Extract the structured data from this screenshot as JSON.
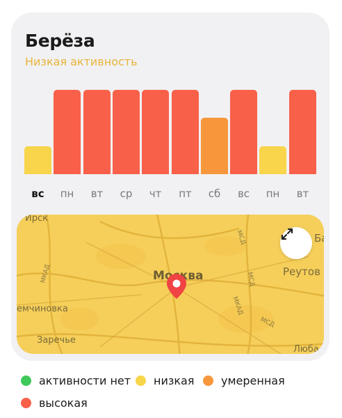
{
  "header": {
    "title": "Берёза",
    "activity_label": "Низкая активность",
    "activity_color": "#e8b43a"
  },
  "forecast": {
    "days": [
      {
        "label": "вс",
        "level": "low",
        "current": true
      },
      {
        "label": "пн",
        "level": "high",
        "current": false
      },
      {
        "label": "вт",
        "level": "high",
        "current": false
      },
      {
        "label": "ср",
        "level": "high",
        "current": false
      },
      {
        "label": "чт",
        "level": "high",
        "current": false
      },
      {
        "label": "пт",
        "level": "high",
        "current": false
      },
      {
        "label": "сб",
        "level": "moderate",
        "current": false
      },
      {
        "label": "вс",
        "level": "high",
        "current": false
      },
      {
        "label": "пн",
        "level": "low",
        "current": false
      },
      {
        "label": "вт",
        "level": "high",
        "current": false
      }
    ],
    "level_scale": {
      "none": 0,
      "low": 1,
      "moderate": 2,
      "high": 3
    },
    "level_colors": {
      "none": "#3ec95a",
      "low": "#f8d54a",
      "moderate": "#f7963b",
      "high": "#f9604a"
    }
  },
  "map": {
    "city_label": "Москва",
    "labels": {
      "top_left": "Ирск",
      "reutov": "Реутов",
      "chermenovka": "емчиновка",
      "zarechye": "Заречье",
      "lyubertsy": "Люба",
      "balashikha": "Ба"
    },
    "road_labels": {
      "mkad_left": "МКАД",
      "msd_1": "МСД",
      "msd_2": "МСД",
      "msd_3": "МСД",
      "mkad_bottom": "МКАД"
    },
    "expand_icon": "expand-arrows-icon",
    "pin_icon": "location-pin-icon",
    "pin_color": "#f04343"
  },
  "legend": [
    {
      "label": "активности нет",
      "color": "#3ec95a"
    },
    {
      "label": "низкая",
      "color": "#f8d54a"
    },
    {
      "label": "умеренная",
      "color": "#f7963b"
    },
    {
      "label": "высокая",
      "color": "#f9604a"
    }
  ]
}
